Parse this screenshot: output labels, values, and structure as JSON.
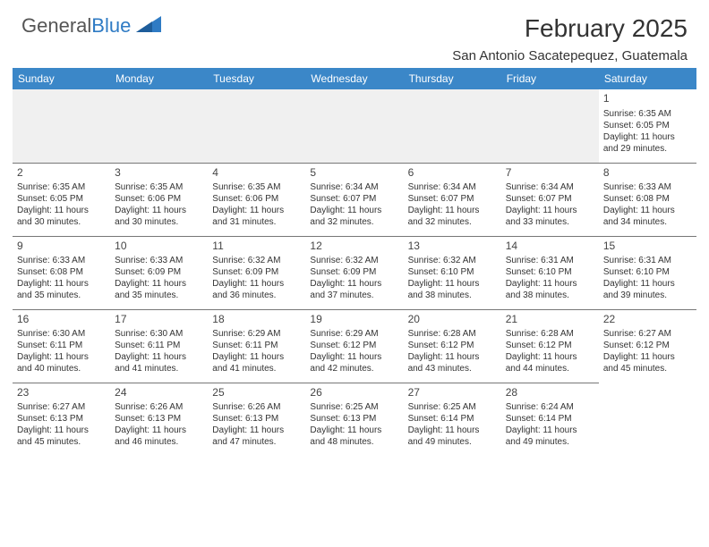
{
  "logo": {
    "text_general": "General",
    "text_blue": "Blue"
  },
  "title": "February 2025",
  "location": "San Antonio Sacatepequez, Guatemala",
  "header_bg": "#3b87c8",
  "header_fg": "#ffffff",
  "row_border": "#777777",
  "weekdays": [
    "Sunday",
    "Monday",
    "Tuesday",
    "Wednesday",
    "Thursday",
    "Friday",
    "Saturday"
  ],
  "weeks": [
    [
      null,
      null,
      null,
      null,
      null,
      null,
      {
        "d": "1",
        "sr": "Sunrise: 6:35 AM",
        "ss": "Sunset: 6:05 PM",
        "dl1": "Daylight: 11 hours",
        "dl2": "and 29 minutes."
      }
    ],
    [
      {
        "d": "2",
        "sr": "Sunrise: 6:35 AM",
        "ss": "Sunset: 6:05 PM",
        "dl1": "Daylight: 11 hours",
        "dl2": "and 30 minutes."
      },
      {
        "d": "3",
        "sr": "Sunrise: 6:35 AM",
        "ss": "Sunset: 6:06 PM",
        "dl1": "Daylight: 11 hours",
        "dl2": "and 30 minutes."
      },
      {
        "d": "4",
        "sr": "Sunrise: 6:35 AM",
        "ss": "Sunset: 6:06 PM",
        "dl1": "Daylight: 11 hours",
        "dl2": "and 31 minutes."
      },
      {
        "d": "5",
        "sr": "Sunrise: 6:34 AM",
        "ss": "Sunset: 6:07 PM",
        "dl1": "Daylight: 11 hours",
        "dl2": "and 32 minutes."
      },
      {
        "d": "6",
        "sr": "Sunrise: 6:34 AM",
        "ss": "Sunset: 6:07 PM",
        "dl1": "Daylight: 11 hours",
        "dl2": "and 32 minutes."
      },
      {
        "d": "7",
        "sr": "Sunrise: 6:34 AM",
        "ss": "Sunset: 6:07 PM",
        "dl1": "Daylight: 11 hours",
        "dl2": "and 33 minutes."
      },
      {
        "d": "8",
        "sr": "Sunrise: 6:33 AM",
        "ss": "Sunset: 6:08 PM",
        "dl1": "Daylight: 11 hours",
        "dl2": "and 34 minutes."
      }
    ],
    [
      {
        "d": "9",
        "sr": "Sunrise: 6:33 AM",
        "ss": "Sunset: 6:08 PM",
        "dl1": "Daylight: 11 hours",
        "dl2": "and 35 minutes."
      },
      {
        "d": "10",
        "sr": "Sunrise: 6:33 AM",
        "ss": "Sunset: 6:09 PM",
        "dl1": "Daylight: 11 hours",
        "dl2": "and 35 minutes."
      },
      {
        "d": "11",
        "sr": "Sunrise: 6:32 AM",
        "ss": "Sunset: 6:09 PM",
        "dl1": "Daylight: 11 hours",
        "dl2": "and 36 minutes."
      },
      {
        "d": "12",
        "sr": "Sunrise: 6:32 AM",
        "ss": "Sunset: 6:09 PM",
        "dl1": "Daylight: 11 hours",
        "dl2": "and 37 minutes."
      },
      {
        "d": "13",
        "sr": "Sunrise: 6:32 AM",
        "ss": "Sunset: 6:10 PM",
        "dl1": "Daylight: 11 hours",
        "dl2": "and 38 minutes."
      },
      {
        "d": "14",
        "sr": "Sunrise: 6:31 AM",
        "ss": "Sunset: 6:10 PM",
        "dl1": "Daylight: 11 hours",
        "dl2": "and 38 minutes."
      },
      {
        "d": "15",
        "sr": "Sunrise: 6:31 AM",
        "ss": "Sunset: 6:10 PM",
        "dl1": "Daylight: 11 hours",
        "dl2": "and 39 minutes."
      }
    ],
    [
      {
        "d": "16",
        "sr": "Sunrise: 6:30 AM",
        "ss": "Sunset: 6:11 PM",
        "dl1": "Daylight: 11 hours",
        "dl2": "and 40 minutes."
      },
      {
        "d": "17",
        "sr": "Sunrise: 6:30 AM",
        "ss": "Sunset: 6:11 PM",
        "dl1": "Daylight: 11 hours",
        "dl2": "and 41 minutes."
      },
      {
        "d": "18",
        "sr": "Sunrise: 6:29 AM",
        "ss": "Sunset: 6:11 PM",
        "dl1": "Daylight: 11 hours",
        "dl2": "and 41 minutes."
      },
      {
        "d": "19",
        "sr": "Sunrise: 6:29 AM",
        "ss": "Sunset: 6:12 PM",
        "dl1": "Daylight: 11 hours",
        "dl2": "and 42 minutes."
      },
      {
        "d": "20",
        "sr": "Sunrise: 6:28 AM",
        "ss": "Sunset: 6:12 PM",
        "dl1": "Daylight: 11 hours",
        "dl2": "and 43 minutes."
      },
      {
        "d": "21",
        "sr": "Sunrise: 6:28 AM",
        "ss": "Sunset: 6:12 PM",
        "dl1": "Daylight: 11 hours",
        "dl2": "and 44 minutes."
      },
      {
        "d": "22",
        "sr": "Sunrise: 6:27 AM",
        "ss": "Sunset: 6:12 PM",
        "dl1": "Daylight: 11 hours",
        "dl2": "and 45 minutes."
      }
    ],
    [
      {
        "d": "23",
        "sr": "Sunrise: 6:27 AM",
        "ss": "Sunset: 6:13 PM",
        "dl1": "Daylight: 11 hours",
        "dl2": "and 45 minutes."
      },
      {
        "d": "24",
        "sr": "Sunrise: 6:26 AM",
        "ss": "Sunset: 6:13 PM",
        "dl1": "Daylight: 11 hours",
        "dl2": "and 46 minutes."
      },
      {
        "d": "25",
        "sr": "Sunrise: 6:26 AM",
        "ss": "Sunset: 6:13 PM",
        "dl1": "Daylight: 11 hours",
        "dl2": "and 47 minutes."
      },
      {
        "d": "26",
        "sr": "Sunrise: 6:25 AM",
        "ss": "Sunset: 6:13 PM",
        "dl1": "Daylight: 11 hours",
        "dl2": "and 48 minutes."
      },
      {
        "d": "27",
        "sr": "Sunrise: 6:25 AM",
        "ss": "Sunset: 6:14 PM",
        "dl1": "Daylight: 11 hours",
        "dl2": "and 49 minutes."
      },
      {
        "d": "28",
        "sr": "Sunrise: 6:24 AM",
        "ss": "Sunset: 6:14 PM",
        "dl1": "Daylight: 11 hours",
        "dl2": "and 49 minutes."
      },
      null
    ]
  ]
}
